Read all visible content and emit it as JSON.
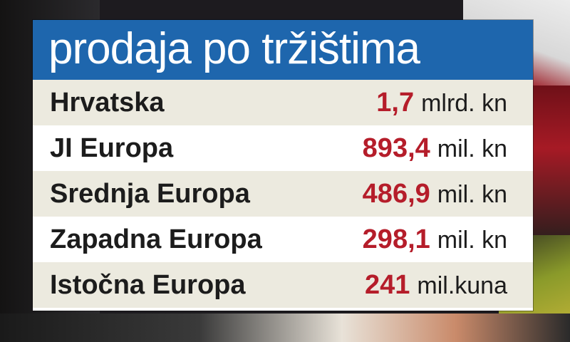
{
  "colors": {
    "header_bg": "#1e66ad",
    "header_text": "#ffffff",
    "value_text": "#b51d2a",
    "label_text": "#1c1c1c",
    "row_shade": "#eceadf",
    "row_plain": "#ffffff"
  },
  "chart_data": {
    "type": "table",
    "title": "prodaja po tržištima",
    "columns": [
      "",
      ""
    ],
    "rows": [
      {
        "region": "Hrvatska",
        "value": "1,7",
        "unit": "mlrd. kn"
      },
      {
        "region": "JI Europa",
        "value": "893,4",
        "unit": "mil. kn"
      },
      {
        "region": "Srednja Europa",
        "value": "486,9",
        "unit": "mil. kn"
      },
      {
        "region": "Zapadna Europa",
        "value": "298,1",
        "unit": "mil. kn"
      },
      {
        "region": "Istočna Europa",
        "value": "241",
        "unit": "mil.kuna"
      }
    ]
  }
}
